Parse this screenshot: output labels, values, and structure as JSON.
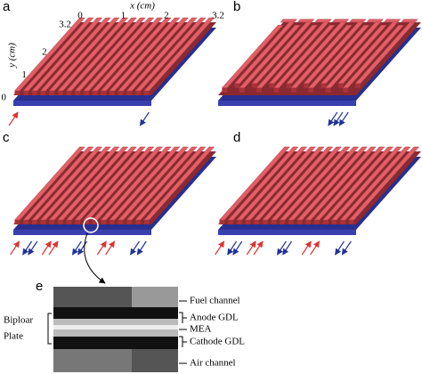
{
  "panels": [
    {
      "label": "a"
    },
    {
      "label": "b"
    },
    {
      "label": "c"
    },
    {
      "label": "d"
    },
    {
      "label": "e"
    }
  ],
  "axes": {
    "x_label": "x (cm)",
    "y_label": "y (cm)",
    "x_ticks": [
      0,
      1,
      2,
      3.2
    ],
    "y_ticks": [
      0,
      1,
      2,
      3.2
    ]
  },
  "cross_section": {
    "layers": [
      "Fuel channel",
      "Anode GDL",
      "MEA",
      "Cathode GDL",
      "Air channel"
    ],
    "group_label": [
      "Biploar",
      "Plate"
    ]
  }
}
